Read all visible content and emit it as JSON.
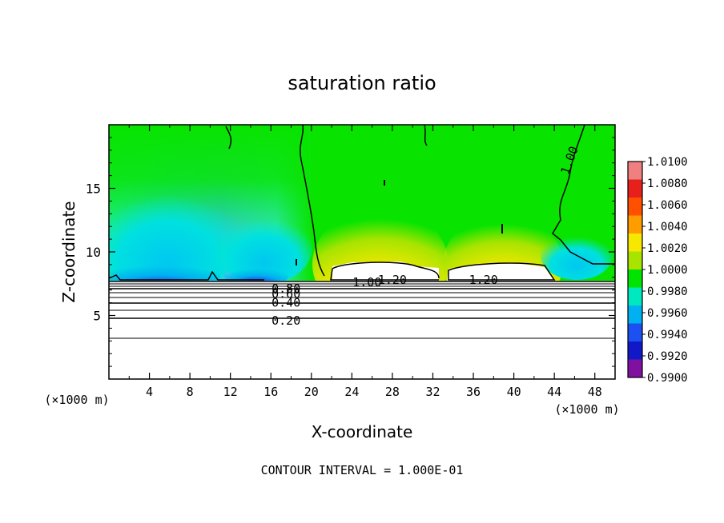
{
  "chart_data": {
    "type": "heatmap",
    "title": "saturation ratio",
    "xlabel": "X-coordinate",
    "ylabel": "Z-coordinate",
    "x_unit": "(×1000 m)",
    "x_unit_right": "(×1000 m)",
    "xlim": [
      0,
      50
    ],
    "ylim": [
      0,
      20
    ],
    "x_ticks": [
      4,
      8,
      12,
      16,
      20,
      24,
      28,
      32,
      36,
      40,
      44,
      48
    ],
    "y_ticks": [
      5,
      10,
      15
    ],
    "footer": "CONTOUR INTERVAL = 1.000E-01",
    "colorbar": {
      "labels": [
        "1.0100",
        "1.0080",
        "1.0060",
        "1.0040",
        "1.0020",
        "1.0000",
        "0.9980",
        "0.9960",
        "0.9940",
        "0.9920",
        "0.9900"
      ],
      "colors": [
        "#f08080",
        "#e8201c",
        "#ff5000",
        "#ff9c00",
        "#f6e800",
        "#a8e400",
        "#00e400",
        "#00e8c0",
        "#00b0f0",
        "#1c50f0",
        "#1018c8",
        "#8010a0"
      ]
    },
    "contour_labels": [
      {
        "text": "1.00",
        "x": 45.5,
        "y": 17.2
      },
      {
        "text": "1.20",
        "x": 28.0,
        "y": 7.8
      },
      {
        "text": "1.20",
        "x": 37.0,
        "y": 7.8
      },
      {
        "text": "1.00",
        "x": 25.5,
        "y": 7.6
      },
      {
        "text": "0.80",
        "x": 17.5,
        "y": 7.1
      },
      {
        "text": "0.60",
        "x": 17.5,
        "y": 6.7
      },
      {
        "text": "0.40",
        "x": 17.5,
        "y": 6.0
      },
      {
        "text": "0.20",
        "x": 17.5,
        "y": 4.6
      }
    ]
  }
}
